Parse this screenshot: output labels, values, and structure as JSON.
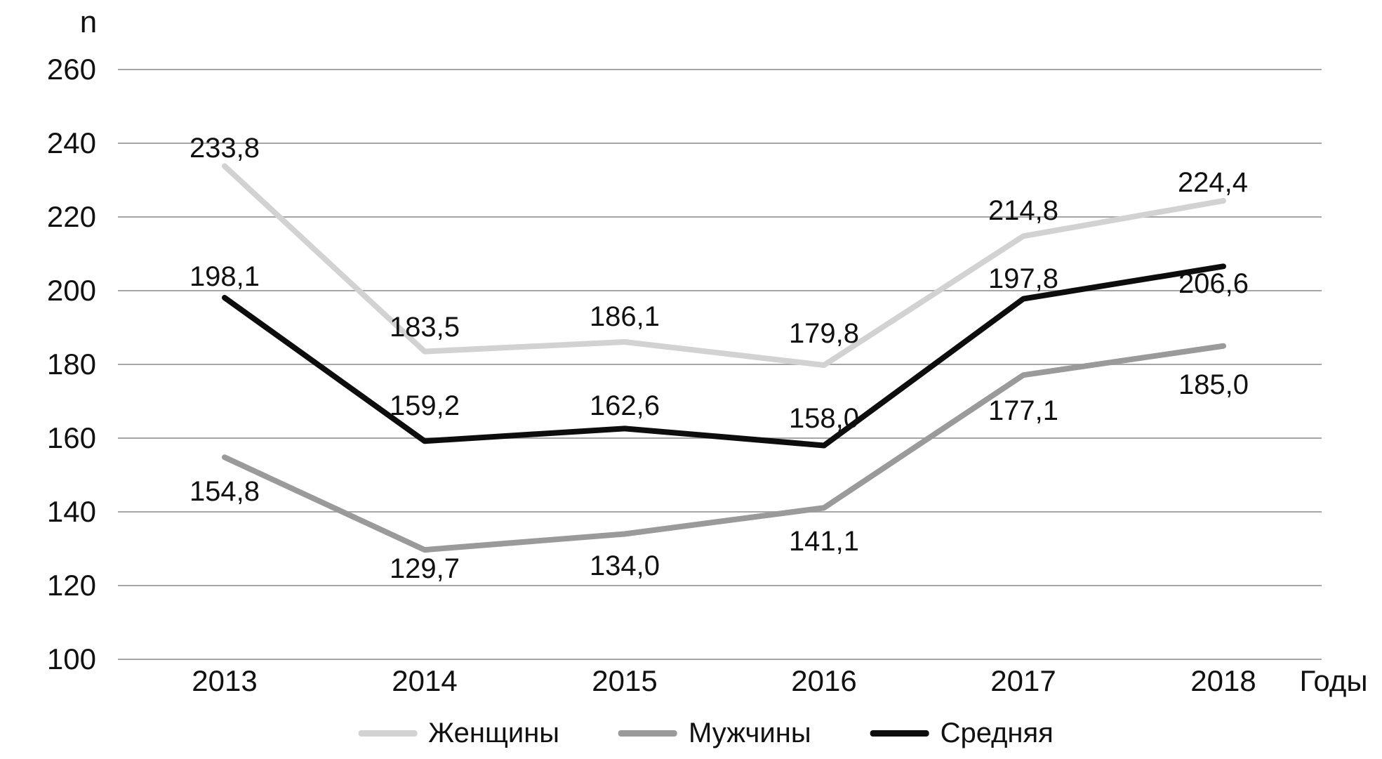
{
  "chart_data": {
    "type": "line",
    "categories": [
      "2013",
      "2014",
      "2015",
      "2016",
      "2017",
      "2018"
    ],
    "x_axis_label": "Годы",
    "y_axis_label": "n",
    "ylim": [
      100,
      260
    ],
    "y_ticks": [
      "260",
      "240",
      "220",
      "200",
      "180",
      "160",
      "140",
      "120",
      "100"
    ],
    "y_tick_values": [
      260,
      240,
      220,
      200,
      180,
      160,
      140,
      120,
      100
    ],
    "grid": "horizontal",
    "legend_position": "bottom-center",
    "background_color": "#ffffff",
    "gridline_color": "#a6a6a6",
    "text_color": "#111111",
    "series": [
      {
        "key": "women",
        "name": "Женщины",
        "color": "#d2d2d2",
        "values": [
          233.8,
          183.5,
          186.1,
          179.8,
          214.8,
          224.4
        ],
        "labels": [
          "233,8",
          "183,5",
          "186,1",
          "179,8",
          "214,8",
          "224,4"
        ],
        "label_side": "above"
      },
      {
        "key": "men",
        "name": "Мужчины",
        "color": "#9a9a9a",
        "values": [
          154.8,
          129.7,
          134.0,
          141.1,
          177.1,
          185.0
        ],
        "labels": [
          "154,8",
          "129,7",
          "134,0",
          "141,1",
          "177,1",
          "185,0"
        ],
        "label_side": "below"
      },
      {
        "key": "average",
        "name": "Средняя",
        "color": "#0d0d0d",
        "values": [
          198.1,
          159.2,
          162.6,
          158.0,
          197.8,
          206.6
        ],
        "labels": [
          "198,1",
          "159,2",
          "162,6",
          "158,0",
          "197,8",
          "206,6"
        ],
        "label_side": "above"
      }
    ]
  }
}
